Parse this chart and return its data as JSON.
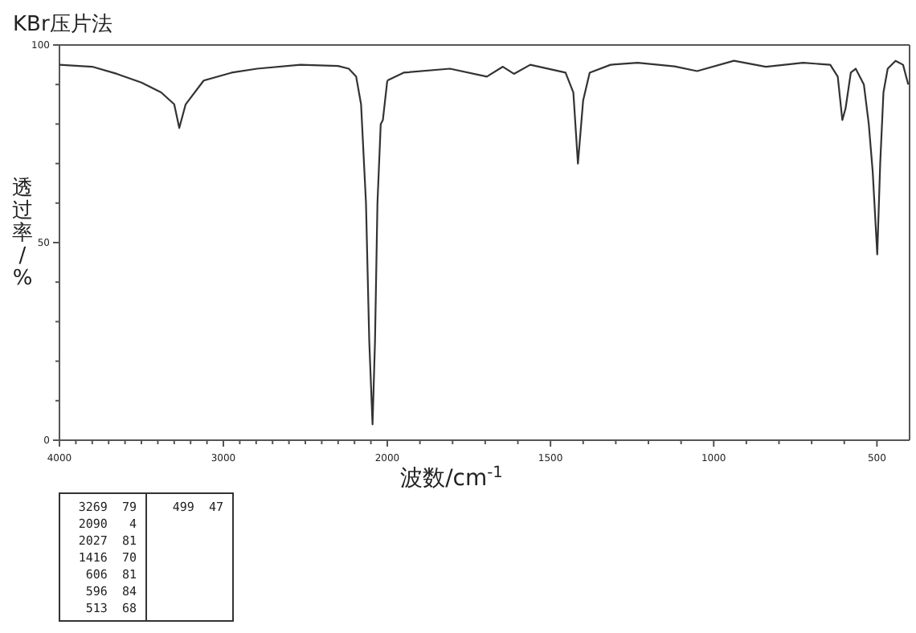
{
  "chart_data": [
    {
      "type": "line",
      "title": "KBr压片法",
      "ylabel": "透过率/%",
      "xlim": [
        4000,
        2000
      ],
      "ylim": [
        0,
        100
      ],
      "xticks": [
        4000,
        {
          "value": 3900,
          "label": null
        },
        {
          "value": 3800,
          "label": null
        },
        {
          "value": 3700,
          "label": null
        },
        {
          "value": 3600,
          "label": null
        },
        {
          "value": 3500,
          "label": null
        },
        {
          "value": 3400,
          "label": null
        },
        {
          "value": 3300,
          "label": null
        },
        {
          "value": 3200,
          "label": null
        },
        {
          "value": 3100,
          "label": null
        },
        3000,
        {
          "value": 2900,
          "label": null
        },
        {
          "value": 2800,
          "label": null
        },
        {
          "value": 2700,
          "label": null
        },
        {
          "value": 2600,
          "label": null
        },
        {
          "value": 2500,
          "label": null
        },
        {
          "value": 2400,
          "label": null
        },
        {
          "value": 2300,
          "label": null
        },
        {
          "value": 2200,
          "label": null
        },
        {
          "value": 2100,
          "label": null
        }
      ],
      "yticks": [
        0,
        {
          "value": 10,
          "label": null
        },
        {
          "value": 20,
          "label": null
        },
        {
          "value": 30,
          "label": null
        },
        {
          "value": 40,
          "label": null
        },
        50,
        {
          "value": 60,
          "label": null
        },
        {
          "value": 70,
          "label": null
        },
        {
          "value": 80,
          "label": null
        },
        {
          "value": 90,
          "label": null
        },
        100
      ],
      "marker": "none",
      "line_style": "solid",
      "series": [
        {
          "color": "#333333",
          "x": [
            4000,
            3800,
            3650,
            3500,
            3380,
            3300,
            3269,
            3230,
            3120,
            2950,
            2794,
            2530,
            2300,
            2235,
            2190,
            2160,
            2130,
            2110,
            2090,
            2075,
            2060,
            2040,
            2027,
            2000
          ],
          "values": [
            95,
            94.5,
            92.7,
            90.5,
            88,
            85,
            79,
            85,
            91,
            93,
            94,
            95,
            94.7,
            94,
            92,
            85,
            60,
            25,
            4,
            25,
            60,
            80,
            81,
            91
          ]
        }
      ],
      "annotations": [
        "3269  79",
        "2090   4",
        "2027  81",
        "1416  70",
        "606  81",
        "596  84",
        "513  68",
        "499  47"
      ]
    },
    {
      "type": "line",
      "xlabel": "波数/cm$^{-1}$",
      "xlim": [
        2000,
        400
      ],
      "ylim": [
        0,
        100
      ],
      "tick_labels": "x",
      "xticks": [
        2000,
        {
          "value": 1900,
          "label": null
        },
        {
          "value": 1800,
          "label": null
        },
        {
          "value": 1700,
          "label": null
        },
        {
          "value": 1600,
          "label": null
        },
        1500,
        {
          "value": 1400,
          "label": null
        },
        {
          "value": 1300,
          "label": null
        },
        {
          "value": 1200,
          "label": null
        },
        {
          "value": 1100,
          "label": null
        },
        1000,
        {
          "value": 900,
          "label": null
        },
        {
          "value": 800,
          "label": null
        },
        {
          "value": 700,
          "label": null
        },
        {
          "value": 600,
          "label": null
        },
        500
      ],
      "marker": "none",
      "line_style": "solid",
      "series": [
        {
          "color": "#333333",
          "x": [
            2000,
            1950,
            1808,
            1695,
            1646,
            1612,
            1562,
            1454,
            1430,
            1416,
            1400,
            1380,
            1316,
            1233,
            1120,
            1051,
            938,
            840,
            726,
            643,
            620,
            606,
            596,
            580,
            565,
            540,
            525,
            513,
            499,
            490,
            480,
            467,
            443,
            420,
            404
          ],
          "values": [
            91,
            93,
            94,
            92,
            94.5,
            92.7,
            95,
            93,
            88,
            70,
            86,
            93,
            95,
            95.5,
            94.6,
            93.4,
            96,
            94.5,
            95.5,
            95,
            92,
            81,
            84,
            93,
            94,
            90,
            80,
            68,
            47,
            70,
            88,
            94,
            96,
            95,
            90
          ]
        }
      ]
    }
  ]
}
